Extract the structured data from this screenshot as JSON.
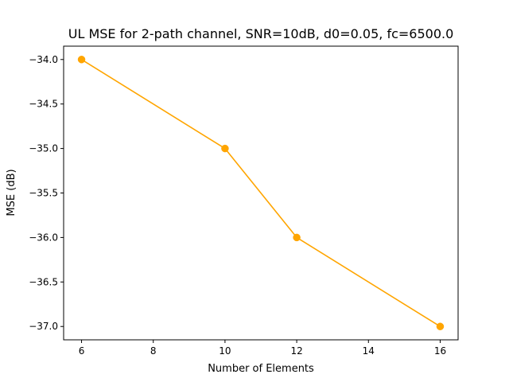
{
  "chart_data": {
    "type": "line",
    "title": "UL MSE for 2-path channel, SNR=10dB, d0=0.05, fc=6500.0",
    "xlabel": "Number of Elements",
    "ylabel": "MSE (dB)",
    "x": [
      6,
      10,
      12,
      16
    ],
    "series": [
      {
        "values": [
          -34.0,
          -35.0,
          -36.0,
          -37.0
        ],
        "color": "#ffa500",
        "marker": "circle"
      }
    ],
    "xlim": [
      5.5,
      16.5
    ],
    "ylim": [
      -37.15,
      -33.85
    ],
    "x_ticks": [
      6,
      8,
      10,
      12,
      14,
      16
    ],
    "x_tick_labels": [
      "6",
      "8",
      "10",
      "12",
      "14",
      "16"
    ],
    "y_ticks": [
      -34.0,
      -34.5,
      -35.0,
      -35.5,
      -36.0,
      -36.5,
      -37.0
    ],
    "y_tick_labels": [
      "−34.0",
      "−34.5",
      "−35.0",
      "−35.5",
      "−36.0",
      "−36.5",
      "−37.0"
    ],
    "grid": false,
    "legend": "none"
  }
}
